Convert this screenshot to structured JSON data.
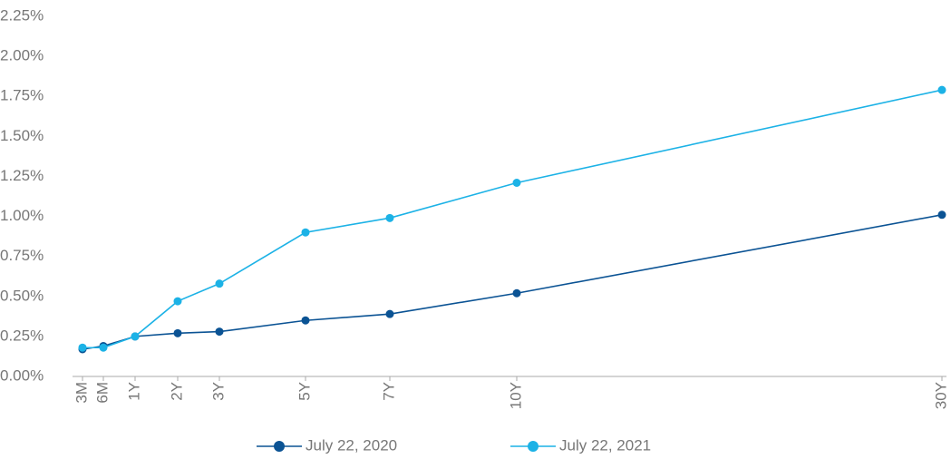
{
  "chart_data": {
    "type": "line",
    "categories": [
      "3M",
      "6M",
      "1Y",
      "2Y",
      "3Y",
      "5Y",
      "7Y",
      "10Y",
      "30Y"
    ],
    "series": [
      {
        "name": "July 22, 2020",
        "color": "#0b5394",
        "values": [
          0.17,
          0.19,
          0.25,
          0.27,
          0.28,
          0.35,
          0.39,
          0.52,
          1.01
        ]
      },
      {
        "name": "July 22, 2021",
        "color": "#1cb2e6",
        "values": [
          0.18,
          0.18,
          0.25,
          0.47,
          0.58,
          0.9,
          0.99,
          1.21,
          1.79
        ]
      }
    ],
    "ylim": [
      0,
      2.25
    ],
    "yticks": [
      {
        "value": 0,
        "label": "0.00%"
      },
      {
        "value": 0.25,
        "label": "0.25%"
      },
      {
        "value": 0.5,
        "label": "0.50%"
      },
      {
        "value": 0.75,
        "label": "0.75%"
      },
      {
        "value": 1,
        "label": "1.00%"
      },
      {
        "value": 1.25,
        "label": "1.25%"
      },
      {
        "value": 1.5,
        "label": "1.50%"
      },
      {
        "value": 1.75,
        "label": "1.75%"
      },
      {
        "value": 2,
        "label": "2.00%"
      },
      {
        "value": 2.25,
        "label": "2.25%"
      }
    ],
    "grid": false
  }
}
